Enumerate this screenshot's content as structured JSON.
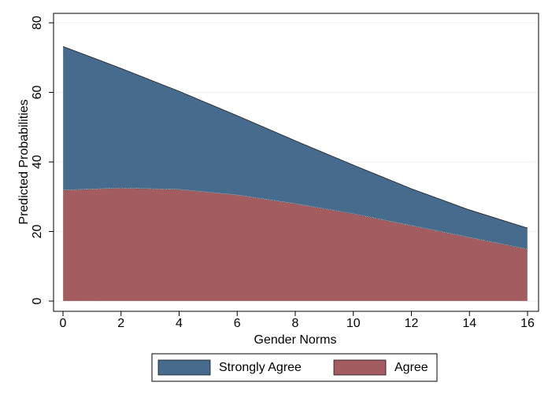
{
  "chart_data": {
    "type": "area",
    "stacked": true,
    "xlabel": "Gender Norms",
    "ylabel": "Predicted Probabilities",
    "x": [
      0,
      2,
      4,
      6,
      8,
      10,
      12,
      14,
      16
    ],
    "series": [
      {
        "name": "Agree",
        "color": "#a35c60",
        "values": [
          31.9,
          32.5,
          32.1,
          30.5,
          28.0,
          25.1,
          21.7,
          18.3,
          14.9
        ]
      },
      {
        "name": "Strongly Agree",
        "color": "#476b8c",
        "values": [
          41.3,
          34.4,
          28.2,
          22.8,
          18.1,
          14.0,
          10.6,
          7.9,
          6.1
        ]
      }
    ],
    "xlim": [
      0,
      16
    ],
    "xticks": [
      0,
      2,
      4,
      6,
      8,
      10,
      12,
      14,
      16
    ],
    "ylim": [
      0,
      80
    ],
    "yticks": [
      0,
      20,
      40,
      60,
      80
    ],
    "grid": true,
    "legend": "bottom"
  }
}
